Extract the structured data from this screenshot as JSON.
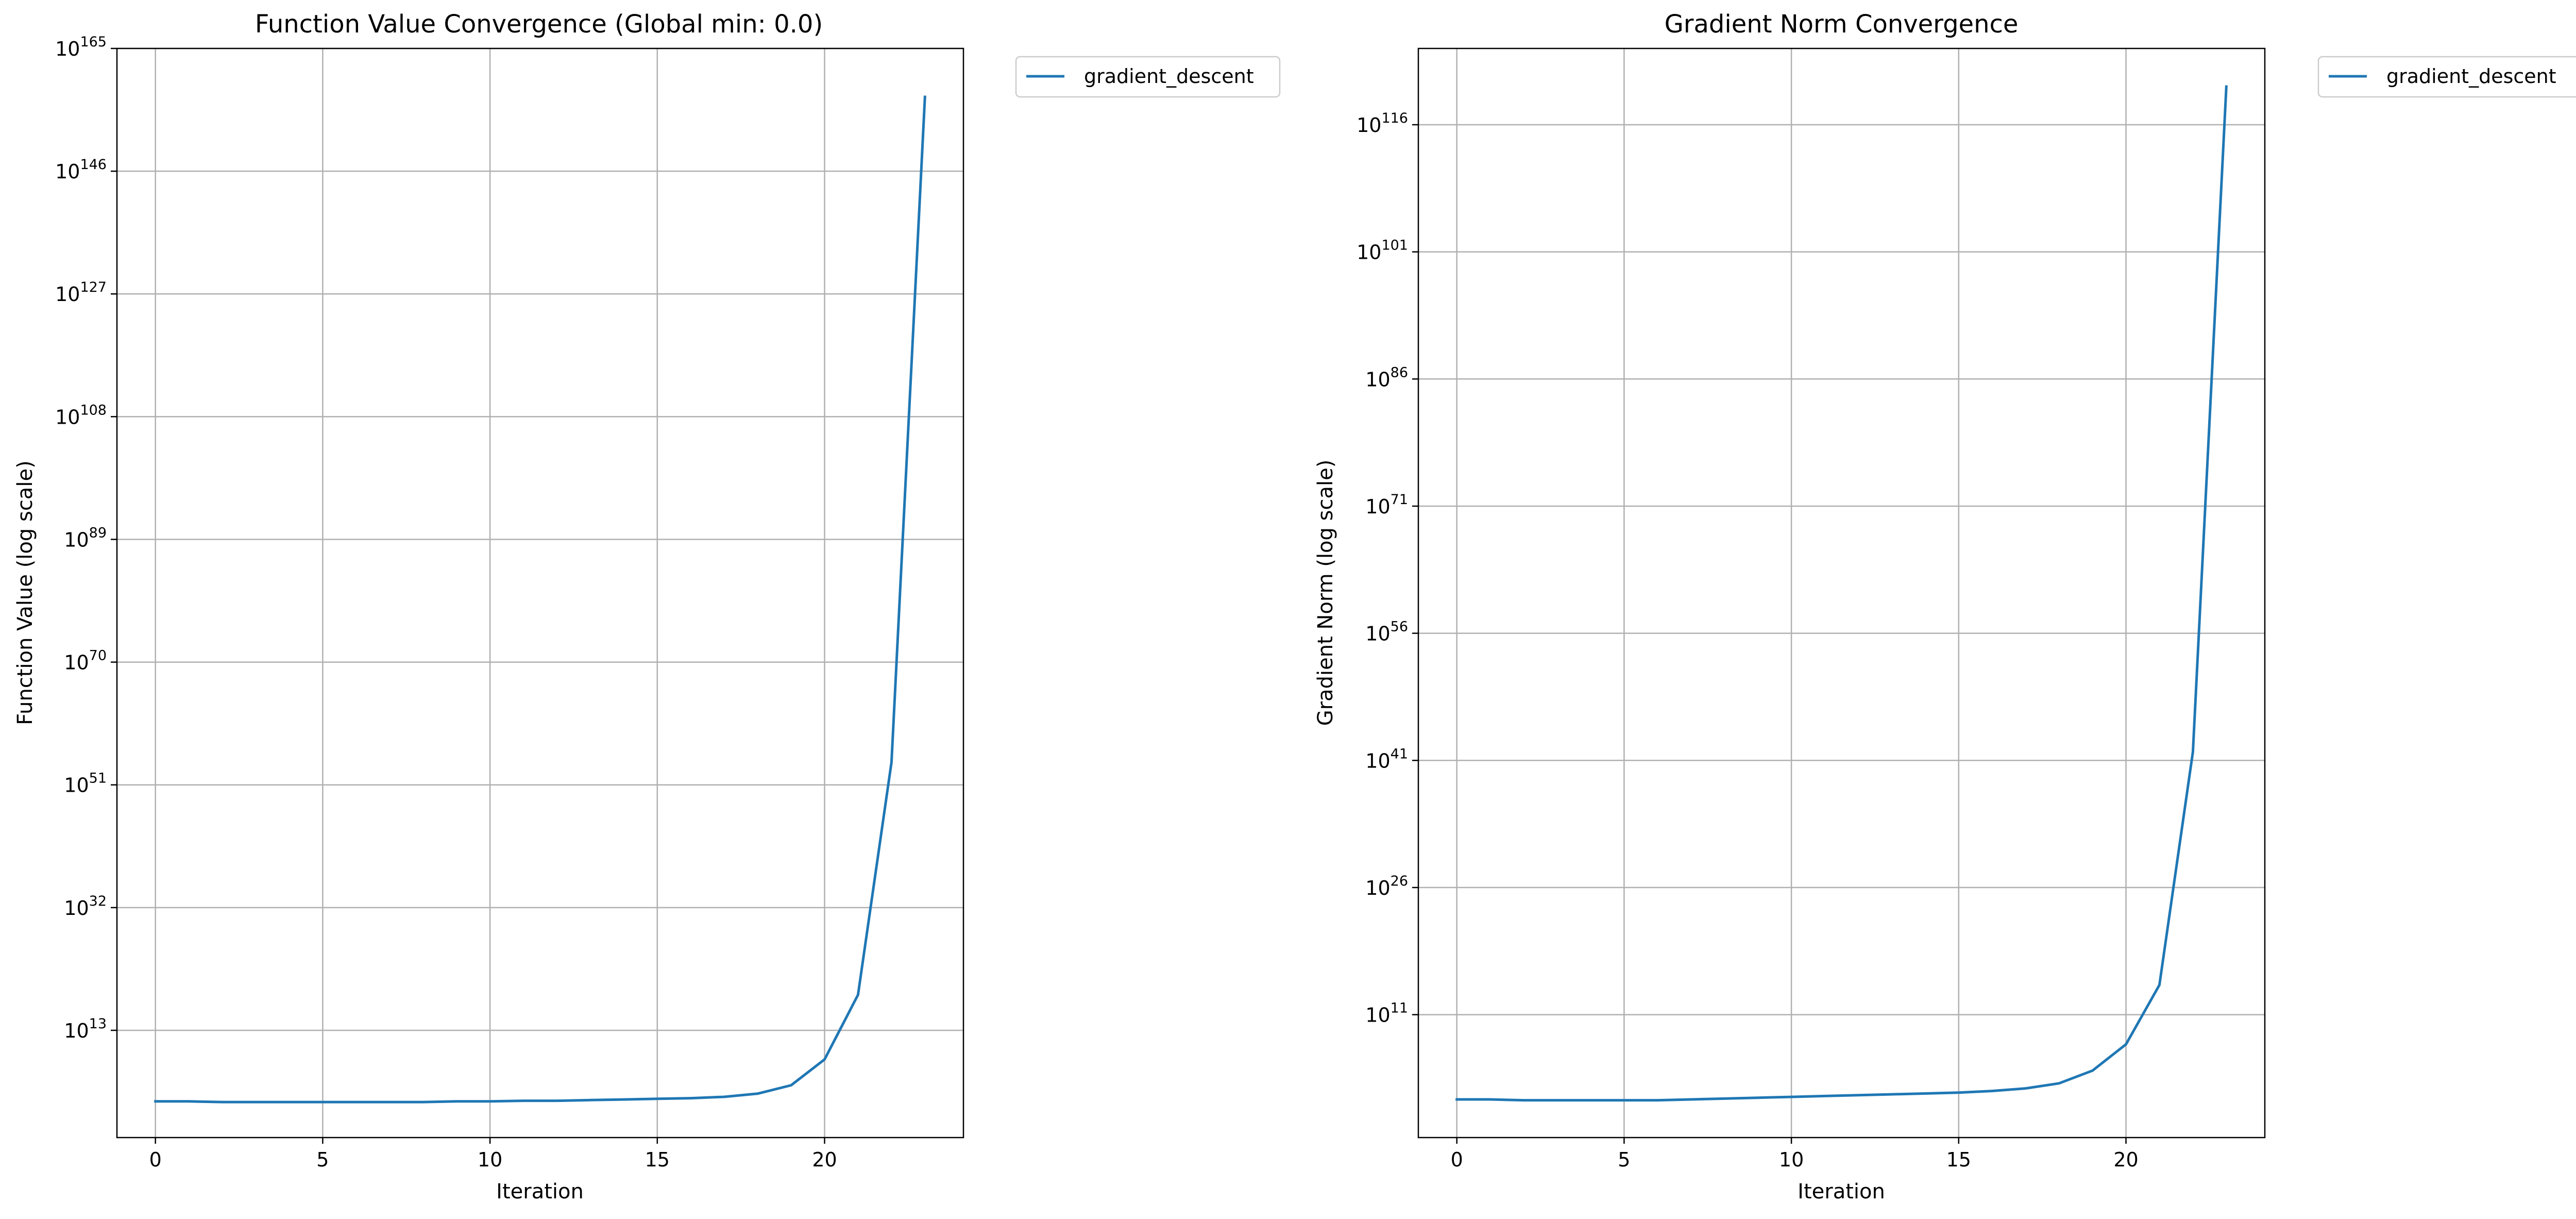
{
  "chart_data": [
    {
      "type": "line",
      "title": "Function Value Convergence (Global min: 0.0)",
      "xlabel": "Iteration",
      "ylabel": "Function Value (log scale)",
      "yscale": "log",
      "xlim": [
        -1.15,
        24.15
      ],
      "ylim_exp": [
        -3.6,
        165
      ],
      "xticks": [
        0,
        5,
        10,
        15,
        20
      ],
      "yticks_exp": [
        13,
        32,
        51,
        70,
        89,
        108,
        127,
        146,
        165
      ],
      "grid": true,
      "legend_position": "outside upper right",
      "series": [
        {
          "name": "gradient_descent",
          "color": "#1f77b4",
          "x": [
            0,
            1,
            2,
            3,
            4,
            5,
            6,
            7,
            8,
            9,
            10,
            11,
            12,
            13,
            14,
            15,
            16,
            17,
            18,
            19,
            20,
            21,
            22,
            23
          ],
          "y_exp": [
            2.0,
            2.0,
            1.9,
            1.9,
            1.9,
            1.9,
            1.9,
            1.9,
            1.9,
            2.0,
            2.0,
            2.1,
            2.1,
            2.2,
            2.3,
            2.4,
            2.5,
            2.7,
            3.2,
            4.5,
            8.5,
            18.5,
            54.5,
            157.5
          ]
        }
      ]
    },
    {
      "type": "line",
      "title": "Gradient Norm Convergence",
      "xlabel": "Iteration",
      "ylabel": "Gradient Norm (log scale)",
      "yscale": "log",
      "xlim": [
        -1.15,
        24.15
      ],
      "ylim_exp": [
        -3.5,
        125
      ],
      "xticks": [
        0,
        5,
        10,
        15,
        20
      ],
      "yticks_exp": [
        11,
        26,
        41,
        56,
        71,
        86,
        101,
        116
      ],
      "grid": true,
      "legend_position": "outside upper right",
      "series": [
        {
          "name": "gradient_descent",
          "color": "#1f77b4",
          "x": [
            0,
            1,
            2,
            3,
            4,
            5,
            6,
            7,
            8,
            9,
            10,
            11,
            12,
            13,
            14,
            15,
            16,
            17,
            18,
            19,
            20,
            21,
            22,
            23
          ],
          "y_exp": [
            1.0,
            1.0,
            0.9,
            0.9,
            0.9,
            0.9,
            0.9,
            1.0,
            1.1,
            1.2,
            1.3,
            1.4,
            1.5,
            1.6,
            1.7,
            1.8,
            2.0,
            2.3,
            2.9,
            4.4,
            7.5,
            14.5,
            42.0,
            120.5
          ]
        }
      ]
    }
  ]
}
